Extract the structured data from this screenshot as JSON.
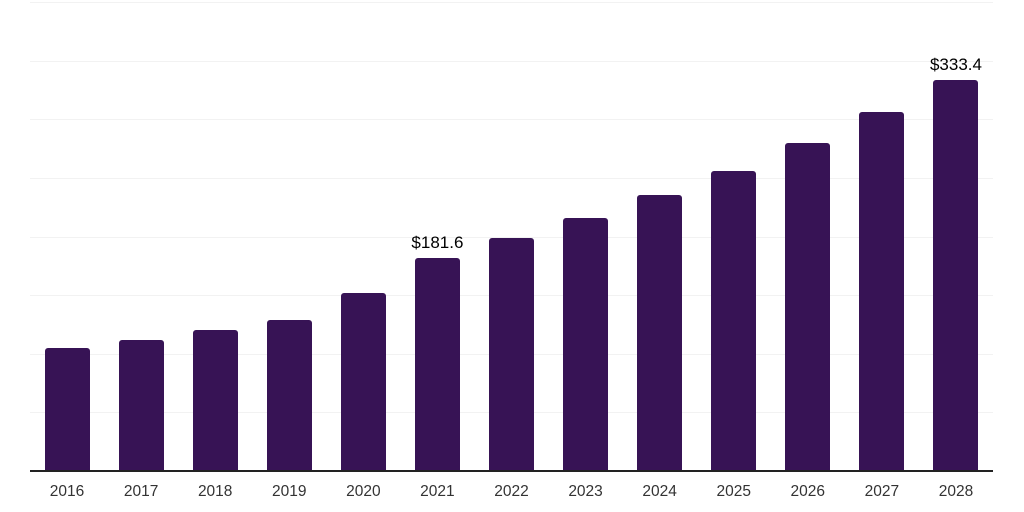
{
  "chart_data": {
    "type": "bar",
    "categories": [
      "2016",
      "2017",
      "2018",
      "2019",
      "2020",
      "2021",
      "2022",
      "2023",
      "2024",
      "2025",
      "2026",
      "2027",
      "2028"
    ],
    "values": [
      105,
      112,
      120,
      129,
      152,
      181.6,
      199,
      216,
      235,
      256,
      280,
      306,
      333.4
    ],
    "data_labels": {
      "2021": "$181.6",
      "2028": "$333.4"
    },
    "ylim": [
      0,
      400
    ],
    "gridline_interval": 50,
    "grid": "horizontal only",
    "legend_position": "none",
    "y_axis_tick_labels_visible": false,
    "colors": {
      "bar": "#371355",
      "axis_line": "#222222",
      "gridline": "#f2f2f2",
      "value_label_text": "#000000",
      "x_tick_text": "#333333",
      "background": "#ffffff"
    }
  }
}
